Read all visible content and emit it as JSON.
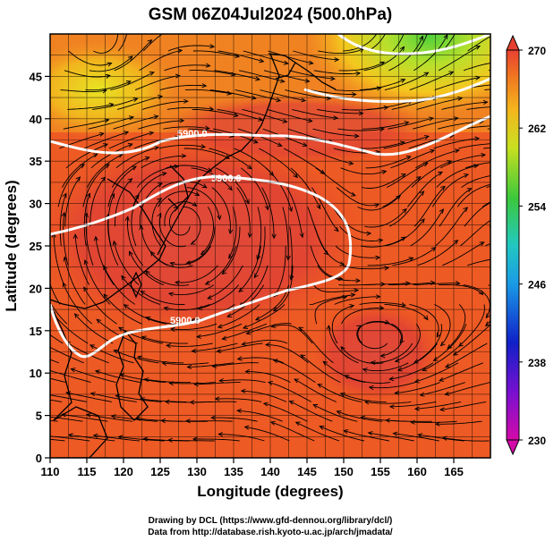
{
  "map": {
    "title": "GSM 06Z04Jul2024 (500.0hPa)",
    "xlabel": "Longitude (degrees)",
    "ylabel": "Latitude  (degrees)",
    "x_ticks": [
      "110",
      "115",
      "120",
      "125",
      "130",
      "135",
      "140",
      "145",
      "150",
      "155",
      "160",
      "165"
    ],
    "y_ticks": [
      "0",
      "5",
      "10",
      "15",
      "20",
      "25",
      "30",
      "35",
      "40",
      "45"
    ],
    "x_range": [
      110,
      170
    ],
    "y_range": [
      0,
      50
    ],
    "contour_labels": [
      "5900.0",
      "5900.0",
      "5900.0"
    ],
    "colorbar": {
      "ticks": [
        "270",
        "262",
        "254",
        "246",
        "238",
        "230"
      ],
      "min": 230,
      "max": 270
    },
    "credit_line1": "Drawing by DCL (https://www.gfd-dennou.org/library/dcl/)",
    "credit_line2": "Data from http://database.rish.kyoto-u.ac.jp/arch/jmadata/"
  },
  "colors": {
    "field_hot": "#e23a28",
    "field_warm": "#f0641e",
    "field_orange": "#f5a020",
    "field_yellow": "#f0e020",
    "field_green": "#55d23c",
    "contour": "#ffffff",
    "streamline": "#000000"
  }
}
